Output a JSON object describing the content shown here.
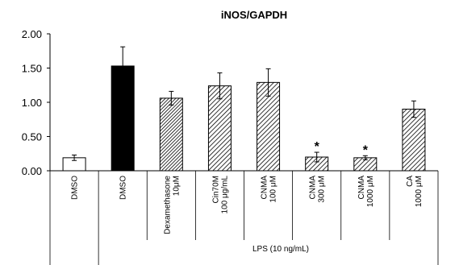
{
  "chart_data": {
    "type": "bar",
    "title": "iNOS/GAPDH",
    "ylim": [
      0,
      2
    ],
    "yticks": [
      "0.00",
      "0.50",
      "1.00",
      "1.50",
      "2.00"
    ],
    "categories": [
      [
        "DMSO"
      ],
      [
        "DMSO"
      ],
      [
        "Dexamethasone",
        "10μM"
      ],
      [
        "Cin70M",
        "100 μg/mL"
      ],
      [
        "CNMA",
        "100 μM"
      ],
      [
        "CNMA",
        "300 μM"
      ],
      [
        "CNMA",
        "1000 μM"
      ],
      [
        "CA",
        "1000 μM"
      ]
    ],
    "values": [
      0.19,
      1.53,
      1.06,
      1.24,
      1.29,
      0.2,
      0.19,
      0.9
    ],
    "errors": [
      0.04,
      0.28,
      0.1,
      0.19,
      0.2,
      0.07,
      0.03,
      0.12
    ],
    "fills": [
      "white",
      "black",
      "hatch-dense",
      "hatch",
      "hatch",
      "hatch",
      "hatch",
      "hatch"
    ],
    "significance": [
      "",
      "",
      "",
      "",
      "",
      "*",
      "*",
      ""
    ],
    "group_label": "LPS  (10 ng/mL)",
    "group_span": [
      1,
      7
    ],
    "grid": false,
    "legend": "none"
  }
}
